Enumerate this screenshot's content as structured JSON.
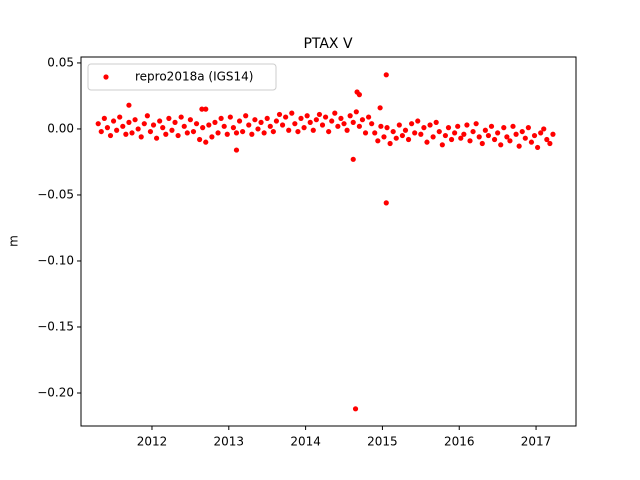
{
  "chart_data": {
    "type": "scatter",
    "title": "PTAX V",
    "ylabel": "m",
    "xlim": [
      2011.076,
      2017.52
    ],
    "ylim": [
      -0.225,
      0.0545
    ],
    "xticks": [
      2012,
      2013,
      2014,
      2015,
      2016,
      2017
    ],
    "yticks": [
      0.05,
      {
        "value": 0,
        "label": "0.00"
      },
      {
        "value": -0.05,
        "label": "−0.05"
      },
      {
        "value": -0.1,
        "label": "−0.10"
      },
      {
        "value": -0.15,
        "label": "−0.15"
      },
      {
        "value": -0.2,
        "label": "−0.20"
      }
    ],
    "legend": "upper left",
    "series": [
      {
        "name": "repro2018a (IGS14)",
        "color": "#ff0000",
        "x": [
          2011.3,
          2011.34,
          2011.38,
          2011.42,
          2011.46,
          2011.5,
          2011.54,
          2011.58,
          2011.62,
          2011.66,
          2011.7,
          2011.74,
          2011.78,
          2011.82,
          2011.86,
          2011.9,
          2011.94,
          2011.98,
          2012.02,
          2012.06,
          2012.1,
          2012.14,
          2012.18,
          2012.22,
          2012.26,
          2012.3,
          2012.34,
          2012.38,
          2012.42,
          2012.46,
          2012.5,
          2012.54,
          2012.58,
          2012.62,
          2012.66,
          2012.7,
          2012.74,
          2012.78,
          2012.82,
          2012.86,
          2012.9,
          2012.94,
          2012.98,
          2013.02,
          2013.06,
          2013.1,
          2013.14,
          2013.18,
          2013.22,
          2013.26,
          2013.3,
          2013.34,
          2013.38,
          2013.42,
          2013.46,
          2013.5,
          2013.54,
          2013.58,
          2013.62,
          2013.66,
          2013.7,
          2013.74,
          2013.78,
          2013.82,
          2013.86,
          2013.9,
          2013.94,
          2013.98,
          2014.02,
          2014.06,
          2014.1,
          2014.14,
          2014.18,
          2014.22,
          2014.26,
          2014.3,
          2014.34,
          2014.38,
          2014.42,
          2014.46,
          2014.5,
          2014.54,
          2014.58,
          2014.62,
          2014.66,
          2014.7,
          2014.74,
          2014.78,
          2014.82,
          2014.86,
          2014.9,
          2014.94,
          2014.98,
          2015.02,
          2015.06,
          2015.1,
          2015.14,
          2015.18,
          2015.22,
          2015.26,
          2015.3,
          2015.34,
          2015.38,
          2015.42,
          2015.46,
          2015.5,
          2015.54,
          2015.58,
          2015.62,
          2015.66,
          2015.7,
          2015.74,
          2015.78,
          2015.82,
          2015.86,
          2015.9,
          2015.94,
          2015.98,
          2016.02,
          2016.06,
          2016.1,
          2016.14,
          2016.18,
          2016.22,
          2016.26,
          2016.3,
          2016.34,
          2016.38,
          2016.42,
          2016.46,
          2016.5,
          2016.54,
          2016.58,
          2016.62,
          2016.66,
          2016.7,
          2016.74,
          2016.78,
          2016.82,
          2016.86,
          2016.9,
          2016.94,
          2016.98,
          2017.02,
          2017.06,
          2017.1,
          2017.14,
          2017.18,
          2017.22,
          2014.62,
          2014.65,
          2014.67,
          2014.7,
          2015.05,
          2015.05,
          2011.7,
          2014.97,
          2012.65,
          2012.7,
          2013.1
        ],
        "values": [
          0.004,
          -0.002,
          0.008,
          0.001,
          -0.005,
          0.006,
          -0.001,
          0.009,
          0.002,
          -0.004,
          0.005,
          -0.003,
          0.007,
          0.0,
          -0.006,
          0.004,
          0.01,
          -0.002,
          0.003,
          -0.007,
          0.006,
          0.001,
          -0.004,
          0.008,
          -0.001,
          0.005,
          -0.005,
          0.009,
          0.002,
          -0.003,
          0.007,
          -0.002,
          0.004,
          -0.008,
          0.001,
          -0.01,
          0.003,
          -0.006,
          0.005,
          -0.003,
          0.008,
          0.002,
          -0.004,
          0.009,
          0.001,
          -0.003,
          0.006,
          -0.002,
          0.01,
          0.003,
          -0.004,
          0.007,
          0.0,
          0.005,
          -0.003,
          0.008,
          0.002,
          -0.002,
          0.006,
          0.011,
          0.003,
          0.009,
          -0.001,
          0.012,
          0.004,
          -0.002,
          0.008,
          0.001,
          0.01,
          0.005,
          -0.001,
          0.007,
          0.011,
          0.003,
          0.009,
          -0.002,
          0.006,
          0.012,
          0.002,
          0.008,
          0.004,
          -0.001,
          0.01,
          0.005,
          0.013,
          0.002,
          0.007,
          -0.003,
          0.009,
          0.004,
          -0.003,
          -0.009,
          0.002,
          -0.006,
          0.001,
          -0.011,
          -0.002,
          -0.007,
          0.003,
          -0.005,
          -0.001,
          -0.008,
          0.004,
          -0.003,
          0.006,
          -0.004,
          0.001,
          -0.01,
          0.003,
          -0.006,
          0.005,
          -0.002,
          -0.012,
          -0.005,
          0.001,
          -0.008,
          -0.003,
          0.002,
          -0.007,
          -0.004,
          0.003,
          -0.009,
          -0.002,
          0.004,
          -0.006,
          -0.011,
          -0.001,
          -0.005,
          0.002,
          -0.008,
          -0.003,
          -0.012,
          0.001,
          -0.006,
          -0.009,
          0.002,
          -0.004,
          -0.013,
          -0.002,
          -0.007,
          0.001,
          -0.01,
          -0.005,
          -0.014,
          -0.003,
          0.0,
          -0.008,
          -0.011,
          -0.004,
          -0.023,
          -0.212,
          0.028,
          0.026,
          0.041,
          -0.056,
          0.018,
          0.016,
          0.015,
          0.015,
          -0.016
        ]
      }
    ]
  }
}
